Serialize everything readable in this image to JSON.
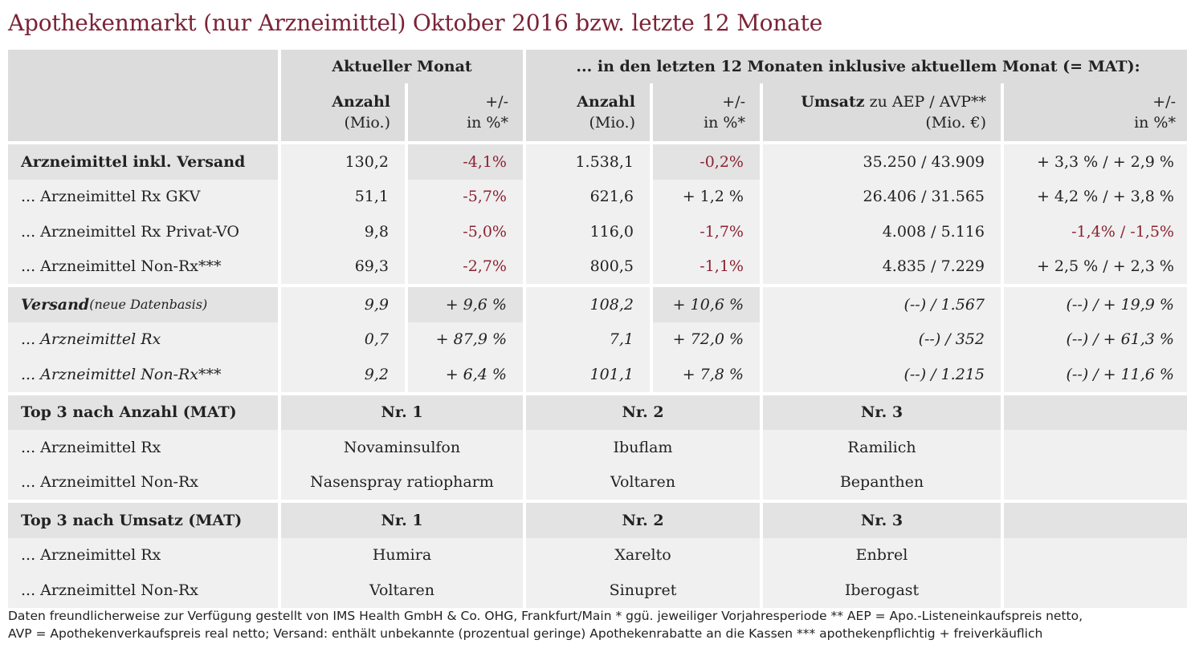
{
  "title": "Apothekenmarkt (nur Arzneimittel) Oktober 2016 bzw. letzte 12 Monate",
  "header": {
    "group_current": "Aktueller Monat",
    "group_mat": "... in den letzten 12 Monaten inklusive aktuellem Monat (= MAT):",
    "col_anzahl": "Anzahl",
    "col_anzahl_unit": "(Mio.)",
    "col_pm": "+/-",
    "col_pm_unit": "in %*",
    "col_umsatz_bold": "Umsatz",
    "col_umsatz_rest": " zu AEP / AVP**",
    "col_umsatz_unit": "(Mio. €)"
  },
  "rows": [
    {
      "label": "Arzneimittel inkl. Versand",
      "anz": "130,2",
      "pm": "-4,1%",
      "anz12": "1.538,1",
      "pm12": "-0,2%",
      "ums": "35.250 / 43.909",
      "pm_ums": "+ 3,3 % / + 2,9 %"
    },
    {
      "label": "... Arzneimittel Rx GKV",
      "anz": "51,1",
      "pm": "-5,7%",
      "anz12": "621,6",
      "pm12": "+ 1,2 %",
      "ums": "26.406 / 31.565",
      "pm_ums": "+ 4,2 % / + 3,8 %"
    },
    {
      "label": "... Arzneimittel Rx Privat-VO",
      "anz": "9,8",
      "pm": "-5,0%",
      "anz12": "116,0",
      "pm12": "-1,7%",
      "ums": "4.008 / 5.116",
      "pm_ums": "-1,4% / -1,5%"
    },
    {
      "label": "... Arzneimittel Non-Rx***",
      "anz": "69,3",
      "pm": "-2,7%",
      "anz12": "800,5",
      "pm12": "-1,1%",
      "ums": "4.835 / 7.229",
      "pm_ums": "+ 2,5 % / + 2,3 %"
    }
  ],
  "versand": {
    "label": "Versand",
    "label_note": " (neue Datenbasis)",
    "anz": "9,9",
    "pm": "+ 9,6 %",
    "anz12": "108,2",
    "pm12": "+ 10,6 %",
    "ums": "(--) / 1.567",
    "pm_ums": "(--) / + 19,9 %",
    "rows": [
      {
        "label": "... Arzneimittel Rx",
        "anz": "0,7",
        "pm": "+ 87,9 %",
        "anz12": "7,1",
        "pm12": "+ 72,0 %",
        "ums": "(--) / 352",
        "pm_ums": "(--) / + 61,3 %"
      },
      {
        "label": "... Arzneimittel Non-Rx***",
        "anz": "9,2",
        "pm": "+ 6,4 %",
        "anz12": "101,1",
        "pm12": "+ 7,8 %",
        "ums": "(--) / 1.215",
        "pm_ums": "(--) / + 11,6 %"
      }
    ]
  },
  "top_anzahl": {
    "label": "Top 3 nach Anzahl (MAT)",
    "nr1": "Nr. 1",
    "nr2": "Nr. 2",
    "nr3": "Nr. 3",
    "rows": [
      {
        "label": "... Arzneimittel Rx",
        "p1": "Novaminsulfon",
        "p2": "Ibuflam",
        "p3": "Ramilich"
      },
      {
        "label": "... Arzneimittel Non-Rx",
        "p1": "Nasenspray ratiopharm",
        "p2": "Voltaren",
        "p3": "Bepanthen"
      }
    ]
  },
  "top_umsatz": {
    "label": "Top 3 nach Umsatz (MAT)",
    "nr1": "Nr. 1",
    "nr2": "Nr. 2",
    "nr3": "Nr. 3",
    "rows": [
      {
        "label": "... Arzneimittel Rx",
        "p1": "Humira",
        "p2": "Xarelto",
        "p3": "Enbrel"
      },
      {
        "label": "... Arzneimittel Non-Rx",
        "p1": "Voltaren",
        "p2": "Sinupret",
        "p3": "Iberogast"
      }
    ]
  },
  "footer": {
    "line1": "Daten freundlicherweise zur Verfügung gestellt von IMS Health GmbH & Co. OHG, Frankfurt/Main    * ggü. jeweiliger Vorjahresperiode    ** AEP = Apo.-Listeneinkaufspreis netto,",
    "line2": "AVP = Apothekenverkaufspreis real netto; Versand: enthält unbekannte (prozentual geringe) Apothekenrabatte an die Kassen    *** apothekenpflichtig + freiverkäuflich"
  },
  "colors": {
    "title": "#7b2335",
    "negative": "#8b2232",
    "header_bg": "#dcdcdc",
    "row_bg": "#f0f0f0",
    "section_bg": "#e3e3e3"
  }
}
